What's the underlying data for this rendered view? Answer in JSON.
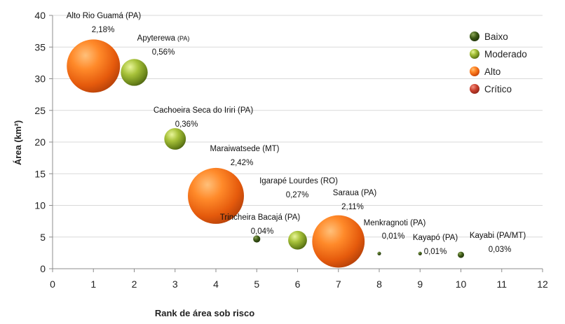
{
  "chart_data": {
    "type": "bubble",
    "xlabel": "Rank de área sob risco",
    "ylabel": "Área (km²)",
    "xlim": [
      0,
      12
    ],
    "ylim": [
      0,
      40
    ],
    "xticks": [
      "0",
      "1",
      "2",
      "3",
      "4",
      "5",
      "6",
      "7",
      "8",
      "9",
      "10",
      "11",
      "12"
    ],
    "yticks": [
      "0",
      "5",
      "10",
      "15",
      "20",
      "25",
      "30",
      "35",
      "40"
    ],
    "grid": "horizontal",
    "legend": {
      "position": "top-right",
      "items": [
        {
          "key": "baixo",
          "name": "Baixo",
          "color": "#2f4a12"
        },
        {
          "key": "moderado",
          "name": "Moderado",
          "color": "#8aa626"
        },
        {
          "key": "alto",
          "name": "Alto",
          "color": "#ee6a12"
        },
        {
          "key": "critico",
          "name": "Crítico",
          "color": "#c0392b"
        }
      ]
    },
    "points": [
      {
        "name": "Alto Rio Guamá (PA)",
        "suffix": "",
        "pct": "2,18%",
        "x": 1,
        "y": 32,
        "pct_value": 2.18,
        "category": "alto"
      },
      {
        "name": "Apyterewa",
        "suffix": "(PA)",
        "pct": "0,56%",
        "x": 2,
        "y": 31,
        "pct_value": 0.56,
        "category": "moderado"
      },
      {
        "name": "Cachoeira Seca do Iriri (PA)",
        "suffix": "",
        "pct": "0,36%",
        "x": 3,
        "y": 20.5,
        "pct_value": 0.36,
        "category": "moderado"
      },
      {
        "name": "Maraiwatsede (MT)",
        "suffix": "",
        "pct": "2,42%",
        "x": 4,
        "y": 11.5,
        "pct_value": 2.42,
        "category": "alto"
      },
      {
        "name": "Trincheira Bacajá (PA)",
        "suffix": "",
        "pct": "0,04%",
        "x": 5,
        "y": 4.7,
        "pct_value": 0.04,
        "category": "baixo"
      },
      {
        "name": "Igarapé Lourdes (RO)",
        "suffix": "",
        "pct": "0,27%",
        "x": 6,
        "y": 4.5,
        "pct_value": 0.27,
        "category": "moderado"
      },
      {
        "name": "Saraua (PA)",
        "suffix": "",
        "pct": "2,11%",
        "x": 7,
        "y": 4.3,
        "pct_value": 2.11,
        "category": "alto"
      },
      {
        "name": "Menkragnoti (PA)",
        "suffix": "",
        "pct": "0,01%",
        "x": 8,
        "y": 2.4,
        "pct_value": 0.01,
        "category": "baixo"
      },
      {
        "name": "Kayapó (PA)",
        "suffix": "",
        "pct": "0,01%",
        "x": 9,
        "y": 2.4,
        "pct_value": 0.01,
        "category": "baixo"
      },
      {
        "name": "Kayabi (PA/MT)",
        "suffix": "",
        "pct": "0,03%",
        "x": 10,
        "y": 2.2,
        "pct_value": 0.03,
        "category": "baixo"
      }
    ]
  }
}
